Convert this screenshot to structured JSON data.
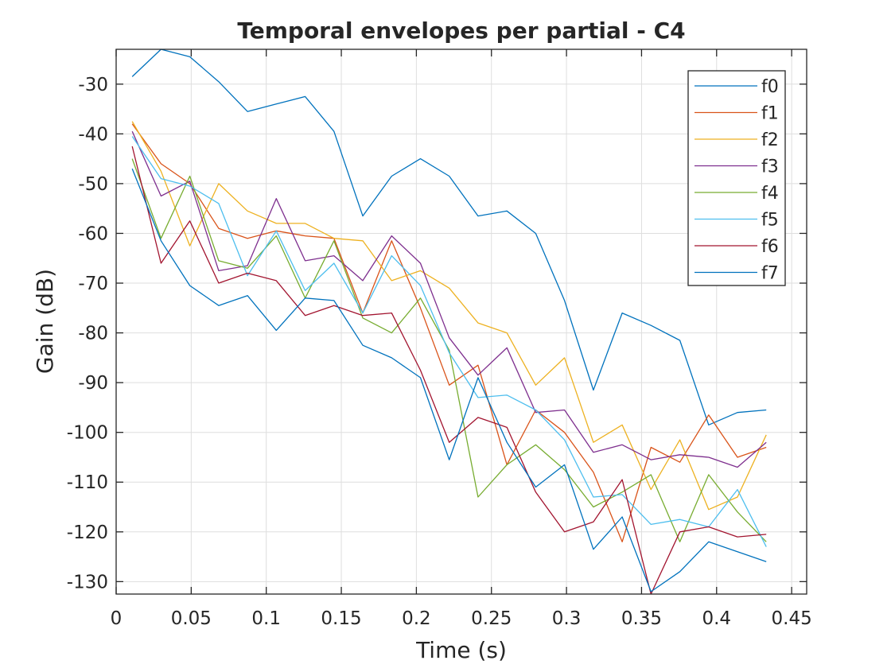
{
  "chart_data": {
    "type": "line",
    "title": "Temporal envelopes per partial - C4",
    "xlabel": "Time (s)",
    "ylabel": "Gain (dB)",
    "xlim": [
      0,
      0.46
    ],
    "ylim": [
      -132.5,
      -23
    ],
    "xticks": [
      0,
      0.05,
      0.1,
      0.15,
      0.2,
      0.25,
      0.3,
      0.35,
      0.4,
      0.45
    ],
    "xtick_labels": [
      "0",
      "0.05",
      "0.1",
      "0.15",
      "0.2",
      "0.25",
      "0.3",
      "0.35",
      "0.4",
      "0.45"
    ],
    "yticks": [
      -30,
      -40,
      -50,
      -60,
      -70,
      -80,
      -90,
      -100,
      -110,
      -120,
      -130
    ],
    "ytick_labels": [
      "-30",
      "-40",
      "-50",
      "-60",
      "-70",
      "-80",
      "-90",
      "-100",
      "-110",
      "-120",
      "-130"
    ],
    "grid": true,
    "legend_position": "top-right",
    "x": [
      0.0107,
      0.0299,
      0.0491,
      0.0683,
      0.0875,
      0.1067,
      0.1259,
      0.1451,
      0.1643,
      0.1835,
      0.2027,
      0.2219,
      0.2411,
      0.2603,
      0.2795,
      0.2987,
      0.3179,
      0.3371,
      0.3563,
      0.3755,
      0.3947,
      0.4139,
      0.4331
    ],
    "series": [
      {
        "name": "f0",
        "color": "#0072BD",
        "values": [
          -28.5,
          -23,
          -24.5,
          -29.5,
          -35.5,
          -34,
          -32.5,
          -39.5,
          -56.5,
          -48.5,
          -45,
          -48.5,
          -56.5,
          -55.5,
          -60,
          -73.5,
          -91.5,
          -76,
          -78.5,
          -81.5,
          -98.5,
          -96,
          -95.5
        ]
      },
      {
        "name": "f1",
        "color": "#D95319",
        "values": [
          -38,
          -46,
          -50,
          -59,
          -61,
          -59.5,
          -60.5,
          -61,
          -76,
          -61.5,
          -75,
          -90.5,
          -86.5,
          -106.5,
          -95.5,
          -100,
          -108,
          -122,
          -103,
          -106,
          -96.5,
          -105,
          -103
        ]
      },
      {
        "name": "f2",
        "color": "#EDB120",
        "values": [
          -37.5,
          -47.5,
          -62.5,
          -50,
          -55.5,
          -58,
          -58,
          -61,
          -61.5,
          -69.5,
          -67.5,
          -71,
          -78,
          -80,
          -90.5,
          -85,
          -102,
          -98.5,
          -111.5,
          -101.5,
          -115.5,
          -113,
          -100.5
        ]
      },
      {
        "name": "f3",
        "color": "#7E2F8E",
        "values": [
          -39.5,
          -52.5,
          -49.5,
          -67.5,
          -66.5,
          -53,
          -65.5,
          -64.5,
          -69.5,
          -60.5,
          -66,
          -81,
          -88.5,
          -83,
          -96,
          -95.5,
          -104,
          -102.5,
          -105.5,
          -104.5,
          -105,
          -107,
          -102
        ]
      },
      {
        "name": "f4",
        "color": "#77AC30",
        "values": [
          -45,
          -61,
          -48.5,
          -65.5,
          -67,
          -60.5,
          -73,
          -61.5,
          -77,
          -80,
          -73,
          -83.5,
          -113,
          -106.5,
          -102.5,
          -107.5,
          -115,
          -112,
          -108.5,
          -122,
          -108.5,
          -116,
          -122
        ]
      },
      {
        "name": "f5",
        "color": "#4DBEEE",
        "values": [
          -40.5,
          -49,
          -50.5,
          -54,
          -68.5,
          -59.5,
          -71.5,
          -66,
          -76,
          -64.5,
          -70.5,
          -84,
          -93,
          -92.5,
          -95.5,
          -101.5,
          -113,
          -112.5,
          -118.5,
          -117.5,
          -119,
          -111.5,
          -123
        ]
      },
      {
        "name": "f6",
        "color": "#A2142F",
        "values": [
          -42.5,
          -66,
          -57.5,
          -70,
          -68,
          -69.5,
          -76.5,
          -74.5,
          -76.5,
          -76,
          -87.5,
          -102,
          -97,
          -99,
          -112,
          -120,
          -118,
          -109.5,
          -132.5,
          -120,
          -119,
          -121,
          -120.5
        ]
      },
      {
        "name": "f7",
        "color": "#0072BD",
        "values": [
          -47,
          -61.5,
          -70.5,
          -74.5,
          -72.5,
          -79.5,
          -73,
          -73.5,
          -82.5,
          -85,
          -89,
          -105.5,
          -89,
          -102,
          -111,
          -106.5,
          -123.5,
          -117,
          -132,
          -128,
          -122,
          -124,
          -126
        ]
      }
    ]
  }
}
